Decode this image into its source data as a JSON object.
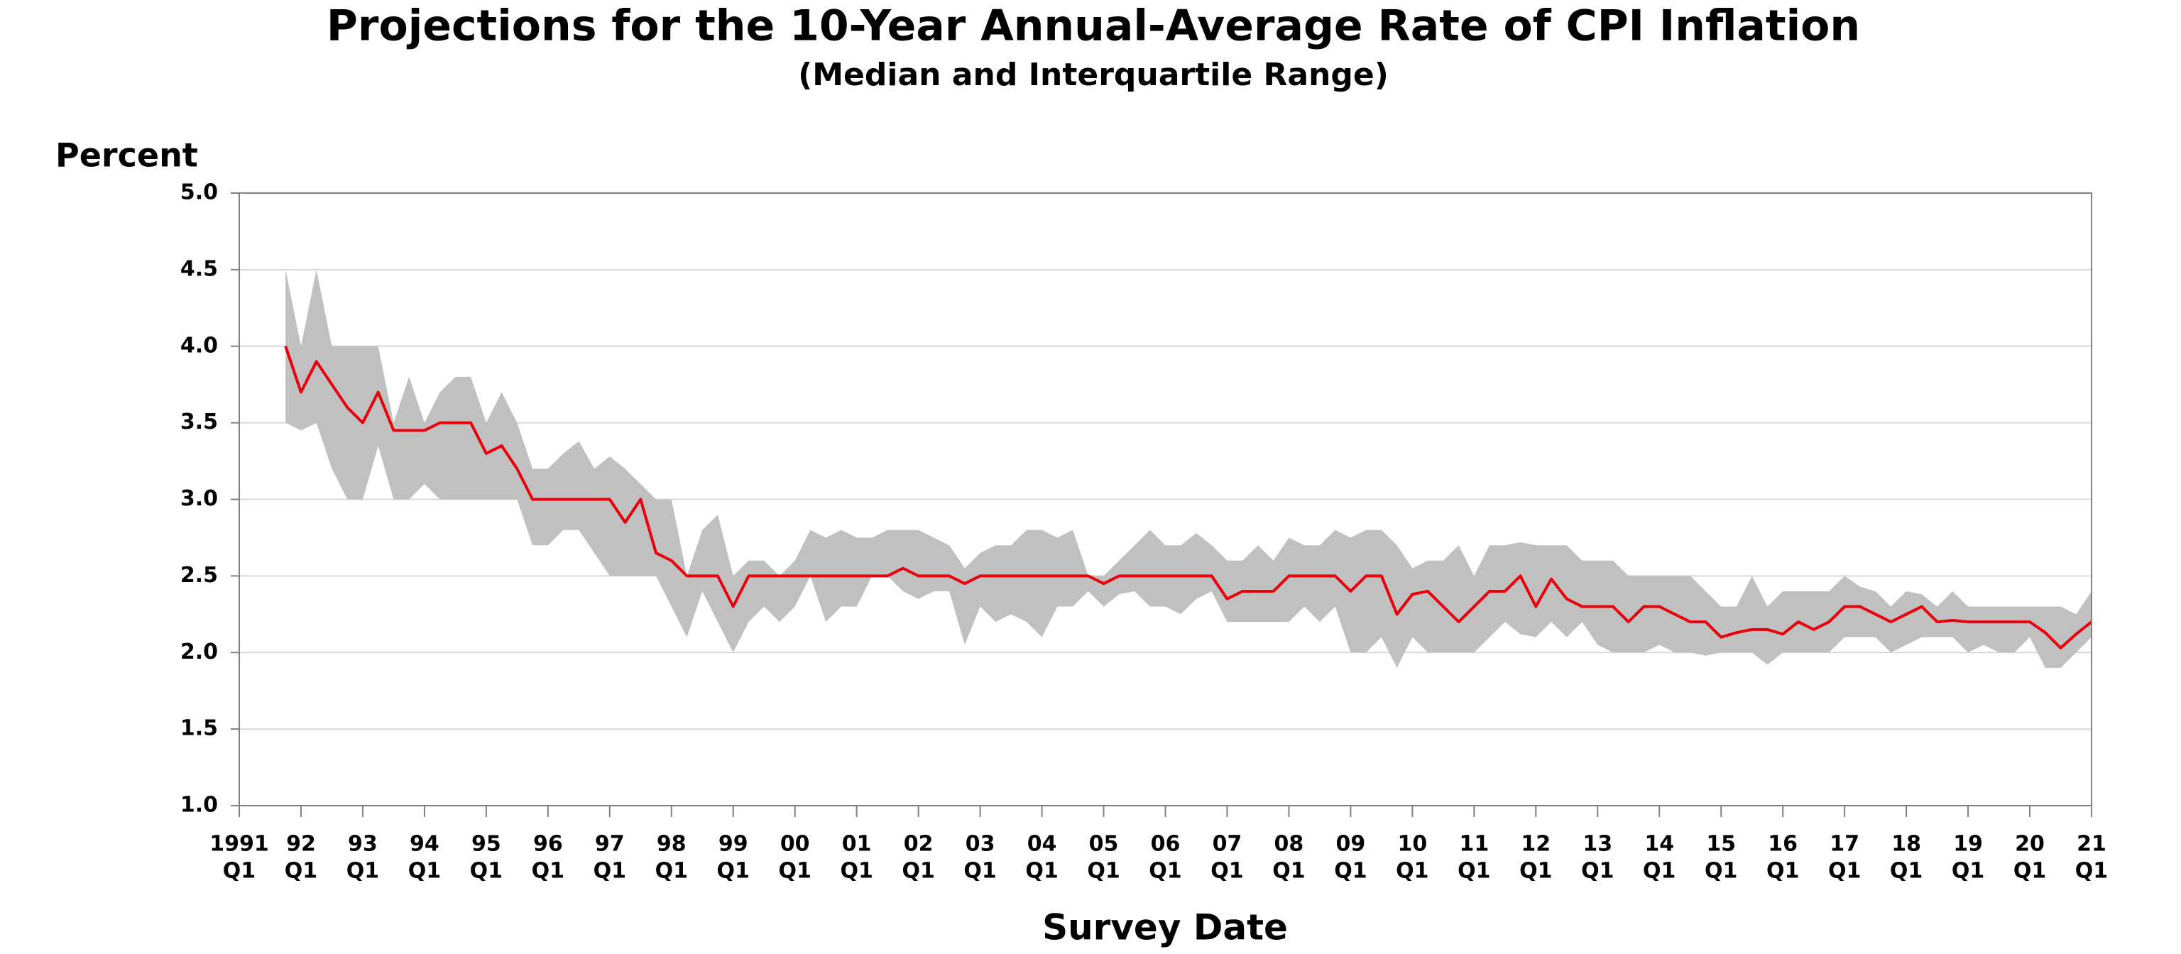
{
  "chart_data": {
    "type": "band-line",
    "title": "Projections for the 10-Year Annual-Average Rate of CPI Inflation",
    "subtitle": "(Median and Interquartile Range)",
    "y_label": "Percent",
    "x_label": "Survey Date",
    "x": [
      "1991Q4",
      "1992Q1",
      "1992Q2",
      "1992Q3",
      "1992Q4",
      "1993Q1",
      "1993Q2",
      "1993Q3",
      "1993Q4",
      "1994Q1",
      "1994Q2",
      "1994Q3",
      "1994Q4",
      "1995Q1",
      "1995Q2",
      "1995Q3",
      "1995Q4",
      "1996Q1",
      "1996Q2",
      "1996Q3",
      "1996Q4",
      "1997Q1",
      "1997Q2",
      "1997Q3",
      "1997Q4",
      "1998Q1",
      "1998Q2",
      "1998Q3",
      "1998Q4",
      "1999Q1",
      "1999Q2",
      "1999Q3",
      "1999Q4",
      "2000Q1",
      "2000Q2",
      "2000Q3",
      "2000Q4",
      "2001Q1",
      "2001Q2",
      "2001Q3",
      "2001Q4",
      "2002Q1",
      "2002Q2",
      "2002Q3",
      "2002Q4",
      "2003Q1",
      "2003Q2",
      "2003Q3",
      "2003Q4",
      "2004Q1",
      "2004Q2",
      "2004Q3",
      "2004Q4",
      "2005Q1",
      "2005Q2",
      "2005Q3",
      "2005Q4",
      "2006Q1",
      "2006Q2",
      "2006Q3",
      "2006Q4",
      "2007Q1",
      "2007Q2",
      "2007Q3",
      "2007Q4",
      "2008Q1",
      "2008Q2",
      "2008Q3",
      "2008Q4",
      "2009Q1",
      "2009Q2",
      "2009Q3",
      "2009Q4",
      "2010Q1",
      "2010Q2",
      "2010Q3",
      "2010Q4",
      "2011Q1",
      "2011Q2",
      "2011Q3",
      "2011Q4",
      "2012Q1",
      "2012Q2",
      "2012Q3",
      "2012Q4",
      "2013Q1",
      "2013Q2",
      "2013Q3",
      "2013Q4",
      "2014Q1",
      "2014Q2",
      "2014Q3",
      "2014Q4",
      "2015Q1",
      "2015Q2",
      "2015Q3",
      "2015Q4",
      "2016Q1",
      "2016Q2",
      "2016Q3",
      "2016Q4",
      "2017Q1",
      "2017Q2",
      "2017Q3",
      "2017Q4",
      "2018Q1",
      "2018Q2",
      "2018Q3",
      "2018Q4",
      "2019Q1",
      "2019Q2",
      "2019Q3",
      "2019Q4",
      "2020Q1",
      "2020Q2",
      "2020Q3",
      "2020Q4",
      "2021Q1"
    ],
    "median": {
      "color": "#e8000b",
      "values": [
        4.0,
        3.7,
        3.9,
        3.75,
        3.6,
        3.5,
        3.7,
        3.45,
        3.45,
        3.45,
        3.5,
        3.5,
        3.5,
        3.3,
        3.35,
        3.2,
        3.0,
        3.0,
        3.0,
        3.0,
        3.0,
        3.0,
        2.85,
        3.0,
        2.65,
        2.6,
        2.5,
        2.5,
        2.5,
        2.3,
        2.5,
        2.5,
        2.5,
        2.5,
        2.5,
        2.5,
        2.5,
        2.5,
        2.5,
        2.5,
        2.55,
        2.5,
        2.5,
        2.5,
        2.45,
        2.5,
        2.5,
        2.5,
        2.5,
        2.5,
        2.5,
        2.5,
        2.5,
        2.45,
        2.5,
        2.5,
        2.5,
        2.5,
        2.5,
        2.5,
        2.5,
        2.35,
        2.4,
        2.4,
        2.4,
        2.5,
        2.5,
        2.5,
        2.5,
        2.4,
        2.5,
        2.5,
        2.25,
        2.38,
        2.4,
        2.3,
        2.2,
        2.3,
        2.4,
        2.4,
        2.5,
        2.3,
        2.48,
        2.35,
        2.3,
        2.3,
        2.3,
        2.2,
        2.3,
        2.3,
        2.25,
        2.2,
        2.2,
        2.1,
        2.13,
        2.15,
        2.15,
        2.12,
        2.2,
        2.15,
        2.2,
        2.3,
        2.3,
        2.25,
        2.2,
        2.25,
        2.3,
        2.2,
        2.21,
        2.2,
        2.2,
        2.2,
        2.2,
        2.2,
        2.13,
        2.03,
        2.12,
        2.2
      ]
    },
    "band": {
      "color": "#c0c0c0",
      "upper": [
        4.5,
        4.0,
        4.5,
        4.0,
        4.0,
        4.0,
        4.0,
        3.5,
        3.8,
        3.5,
        3.7,
        3.8,
        3.8,
        3.5,
        3.7,
        3.5,
        3.2,
        3.2,
        3.3,
        3.38,
        3.2,
        3.28,
        3.2,
        3.1,
        3.0,
        3.0,
        2.5,
        2.8,
        2.9,
        2.5,
        2.6,
        2.6,
        2.5,
        2.6,
        2.8,
        2.75,
        2.8,
        2.75,
        2.75,
        2.8,
        2.8,
        2.8,
        2.75,
        2.7,
        2.55,
        2.65,
        2.7,
        2.7,
        2.8,
        2.8,
        2.75,
        2.8,
        2.5,
        2.5,
        2.6,
        2.7,
        2.8,
        2.7,
        2.7,
        2.78,
        2.7,
        2.6,
        2.6,
        2.7,
        2.6,
        2.75,
        2.7,
        2.7,
        2.8,
        2.75,
        2.8,
        2.8,
        2.7,
        2.55,
        2.6,
        2.6,
        2.7,
        2.5,
        2.7,
        2.7,
        2.72,
        2.7,
        2.7,
        2.7,
        2.6,
        2.6,
        2.6,
        2.5,
        2.5,
        2.5,
        2.5,
        2.5,
        2.4,
        2.3,
        2.3,
        2.5,
        2.3,
        2.4,
        2.4,
        2.4,
        2.4,
        2.5,
        2.43,
        2.4,
        2.3,
        2.4,
        2.38,
        2.3,
        2.4,
        2.3,
        2.3,
        2.3,
        2.3,
        2.3,
        2.3,
        2.3,
        2.25,
        2.4
      ],
      "lower": [
        3.5,
        3.45,
        3.5,
        3.2,
        3.0,
        3.0,
        3.35,
        3.0,
        3.0,
        3.1,
        3.0,
        3.0,
        3.0,
        3.0,
        3.0,
        3.0,
        2.7,
        2.7,
        2.8,
        2.8,
        2.65,
        2.5,
        2.5,
        2.5,
        2.5,
        2.3,
        2.1,
        2.4,
        2.2,
        2.0,
        2.2,
        2.3,
        2.2,
        2.3,
        2.5,
        2.2,
        2.3,
        2.3,
        2.5,
        2.5,
        2.4,
        2.35,
        2.4,
        2.4,
        2.05,
        2.3,
        2.2,
        2.25,
        2.2,
        2.1,
        2.3,
        2.3,
        2.4,
        2.3,
        2.38,
        2.4,
        2.3,
        2.3,
        2.25,
        2.35,
        2.4,
        2.2,
        2.2,
        2.2,
        2.2,
        2.2,
        2.3,
        2.2,
        2.3,
        2.0,
        2.0,
        2.1,
        1.9,
        2.1,
        2.0,
        2.0,
        2.0,
        2.0,
        2.1,
        2.2,
        2.12,
        2.1,
        2.2,
        2.1,
        2.2,
        2.05,
        2.0,
        2.0,
        2.0,
        2.05,
        2.0,
        2.0,
        1.98,
        2.0,
        2.0,
        2.0,
        1.92,
        2.0,
        2.0,
        2.0,
        2.0,
        2.1,
        2.1,
        2.1,
        2.0,
        2.05,
        2.1,
        2.1,
        2.1,
        2.0,
        2.05,
        2.0,
        2.0,
        2.1,
        1.9,
        1.9,
        2.0,
        2.1
      ]
    },
    "xlim": [
      "1991Q1",
      "2021Q1"
    ],
    "xticks": [
      {
        "value": "1991Q1",
        "label": [
          "1991",
          "Q1"
        ]
      },
      {
        "value": "1992Q1",
        "label": [
          "92",
          "Q1"
        ]
      },
      {
        "value": "1993Q1",
        "label": [
          "93",
          "Q1"
        ]
      },
      {
        "value": "1994Q1",
        "label": [
          "94",
          "Q1"
        ]
      },
      {
        "value": "1995Q1",
        "label": [
          "95",
          "Q1"
        ]
      },
      {
        "value": "1996Q1",
        "label": [
          "96",
          "Q1"
        ]
      },
      {
        "value": "1997Q1",
        "label": [
          "97",
          "Q1"
        ]
      },
      {
        "value": "1998Q1",
        "label": [
          "98",
          "Q1"
        ]
      },
      {
        "value": "1999Q1",
        "label": [
          "99",
          "Q1"
        ]
      },
      {
        "value": "2000Q1",
        "label": [
          "00",
          "Q1"
        ]
      },
      {
        "value": "2001Q1",
        "label": [
          "01",
          "Q1"
        ]
      },
      {
        "value": "2002Q1",
        "label": [
          "02",
          "Q1"
        ]
      },
      {
        "value": "2003Q1",
        "label": [
          "03",
          "Q1"
        ]
      },
      {
        "value": "2004Q1",
        "label": [
          "04",
          "Q1"
        ]
      },
      {
        "value": "2005Q1",
        "label": [
          "05",
          "Q1"
        ]
      },
      {
        "value": "2006Q1",
        "label": [
          "06",
          "Q1"
        ]
      },
      {
        "value": "2007Q1",
        "label": [
          "07",
          "Q1"
        ]
      },
      {
        "value": "2008Q1",
        "label": [
          "08",
          "Q1"
        ]
      },
      {
        "value": "2009Q1",
        "label": [
          "09",
          "Q1"
        ]
      },
      {
        "value": "2010Q1",
        "label": [
          "10",
          "Q1"
        ]
      },
      {
        "value": "2011Q1",
        "label": [
          "11",
          "Q1"
        ]
      },
      {
        "value": "2012Q1",
        "label": [
          "12",
          "Q1"
        ]
      },
      {
        "value": "2013Q1",
        "label": [
          "13",
          "Q1"
        ]
      },
      {
        "value": "2014Q1",
        "label": [
          "14",
          "Q1"
        ]
      },
      {
        "value": "2015Q1",
        "label": [
          "15",
          "Q1"
        ]
      },
      {
        "value": "2016Q1",
        "label": [
          "16",
          "Q1"
        ]
      },
      {
        "value": "2017Q1",
        "label": [
          "17",
          "Q1"
        ]
      },
      {
        "value": "2018Q1",
        "label": [
          "18",
          "Q1"
        ]
      },
      {
        "value": "2019Q1",
        "label": [
          "19",
          "Q1"
        ]
      },
      {
        "value": "2020Q1",
        "label": [
          "20",
          "Q1"
        ]
      },
      {
        "value": "2021Q1",
        "label": [
          "21",
          "Q1"
        ]
      }
    ],
    "ylim": [
      1.0,
      5.0
    ],
    "yticks": [
      {
        "value": 1.0,
        "label": "1.0"
      },
      {
        "value": 1.5,
        "label": "1.5"
      },
      {
        "value": 2.0,
        "label": "2.0"
      },
      {
        "value": 2.5,
        "label": "2.5"
      },
      {
        "value": 3.0,
        "label": "3.0"
      },
      {
        "value": 3.5,
        "label": "3.5"
      },
      {
        "value": 4.0,
        "label": "4.0"
      },
      {
        "value": 4.5,
        "label": "4.5"
      },
      {
        "value": 5.0,
        "label": "5.0"
      }
    ],
    "grid": true
  }
}
